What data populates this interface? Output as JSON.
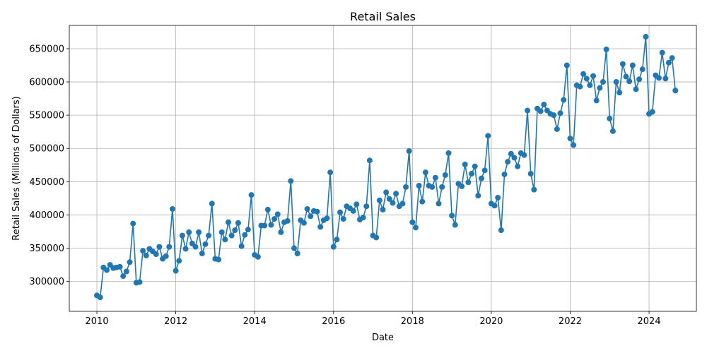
{
  "chart_data": {
    "type": "line",
    "title": "Retail Sales",
    "xlabel": "Date",
    "ylabel": "Retail Sales (Millions of Dollars)",
    "xlim": [
      2009.3,
      2025.2
    ],
    "ylim": [
      255000,
      685000
    ],
    "x_ticks": [
      2010,
      2012,
      2014,
      2016,
      2018,
      2020,
      2022,
      2024
    ],
    "y_ticks": [
      300000,
      350000,
      400000,
      450000,
      500000,
      550000,
      600000,
      650000
    ],
    "grid": true,
    "marker": "circle",
    "series": [
      {
        "color": "#1f77b4",
        "start": "2010-01",
        "frequency": "monthly",
        "values": [
          279000,
          276000,
          321000,
          317000,
          325000,
          320000,
          321000,
          322000,
          308000,
          315000,
          329000,
          387000,
          298000,
          299000,
          346000,
          339000,
          349000,
          345000,
          341000,
          352000,
          334000,
          338000,
          352000,
          409000,
          316000,
          331000,
          369000,
          349000,
          374000,
          357000,
          352000,
          374000,
          342000,
          356000,
          369000,
          417000,
          334000,
          333000,
          374000,
          363000,
          389000,
          369000,
          377000,
          388000,
          353000,
          370000,
          378000,
          430000,
          340000,
          337000,
          384000,
          384000,
          408000,
          385000,
          394000,
          401000,
          374000,
          389000,
          391000,
          451000,
          350000,
          342000,
          392000,
          388000,
          409000,
          398000,
          406000,
          405000,
          382000,
          392000,
          395000,
          464000,
          352000,
          363000,
          404000,
          394000,
          413000,
          410000,
          406000,
          416000,
          393000,
          396000,
          413000,
          482000,
          369000,
          366000,
          422000,
          408000,
          434000,
          424000,
          418000,
          432000,
          413000,
          417000,
          442000,
          496000,
          389000,
          381000,
          444000,
          420000,
          464000,
          444000,
          442000,
          456000,
          417000,
          442000,
          460000,
          493000,
          399000,
          385000,
          447000,
          443000,
          476000,
          449000,
          462000,
          473000,
          429000,
          455000,
          467000,
          519000,
          417000,
          414000,
          426000,
          377000,
          461000,
          480000,
          492000,
          486000,
          473000,
          493000,
          490000,
          557000,
          462000,
          438000,
          560000,
          556000,
          566000,
          557000,
          552000,
          550000,
          529000,
          553000,
          573000,
          625000,
          515000,
          505000,
          595000,
          593000,
          612000,
          605000,
          595000,
          609000,
          572000,
          591000,
          600000,
          649000,
          545000,
          526000,
          600000,
          584000,
          627000,
          608000,
          601000,
          625000,
          589000,
          604000,
          619000,
          668000,
          552000,
          555000,
          610000,
          606000,
          644000,
          605000,
          629000,
          636000,
          587000
        ]
      }
    ]
  }
}
